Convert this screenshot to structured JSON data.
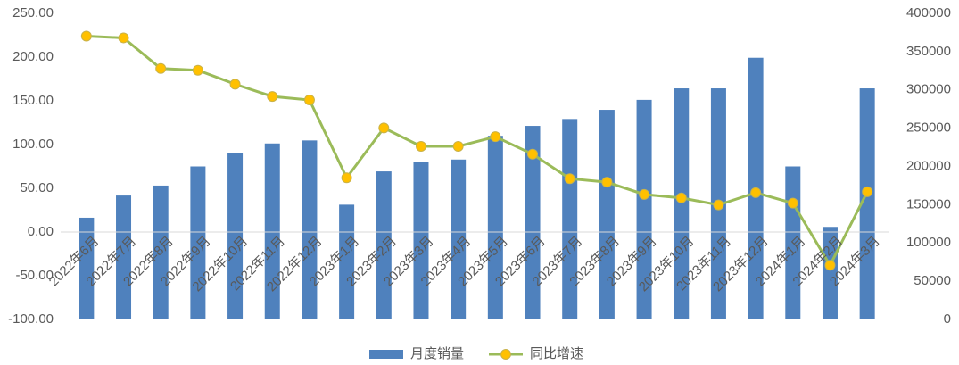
{
  "chart_data": {
    "type": "bar-line",
    "categories": [
      "2022年6月",
      "2022年7月",
      "2022年8月",
      "2022年9月",
      "2022年10月",
      "2022年11月",
      "2022年12月",
      "2023年1月",
      "2023年2月",
      "2023年3月",
      "2023年4月",
      "2023年5月",
      "2023年6月",
      "2023年7月",
      "2023年8月",
      "2023年9月",
      "2023年10月",
      "2023年11月",
      "2023年12月",
      "2024年1月",
      "2024年2月",
      "2024年3月"
    ],
    "series": [
      {
        "name": "月度销量",
        "type": "bar",
        "axis": "y2",
        "color": "#4f81bd",
        "values": [
          133000,
          162000,
          175000,
          200000,
          217000,
          230000,
          234000,
          150000,
          193500,
          206000,
          209000,
          240000,
          253000,
          262000,
          274000,
          287000,
          302000,
          302000,
          342000,
          200000,
          121000,
          302000
        ]
      },
      {
        "name": "同比增速",
        "type": "line",
        "axis": "y",
        "color": "#9bbb59",
        "marker_color": "#ffc000",
        "values": [
          224,
          222,
          187,
          185,
          169,
          155,
          151,
          62,
          119,
          98,
          98,
          109,
          89,
          61,
          57,
          43,
          39,
          31,
          45,
          33,
          -38,
          46
        ]
      }
    ],
    "ylim": [
      -100,
      250
    ],
    "yticks": [
      {
        "value": -100,
        "label": "-100.00"
      },
      {
        "value": -50,
        "label": "-50.00"
      },
      {
        "value": 0,
        "label": "0.00"
      },
      {
        "value": 50,
        "label": "50.00"
      },
      {
        "value": 100,
        "label": "100.00"
      },
      {
        "value": 150,
        "label": "150.00"
      },
      {
        "value": 200,
        "label": "200.00"
      },
      {
        "value": 250,
        "label": "250.00"
      }
    ],
    "y2lim": [
      0,
      400000
    ],
    "y2ticks": [
      0,
      50000,
      100000,
      150000,
      200000,
      250000,
      300000,
      350000,
      400000
    ],
    "legend": "bottom"
  }
}
